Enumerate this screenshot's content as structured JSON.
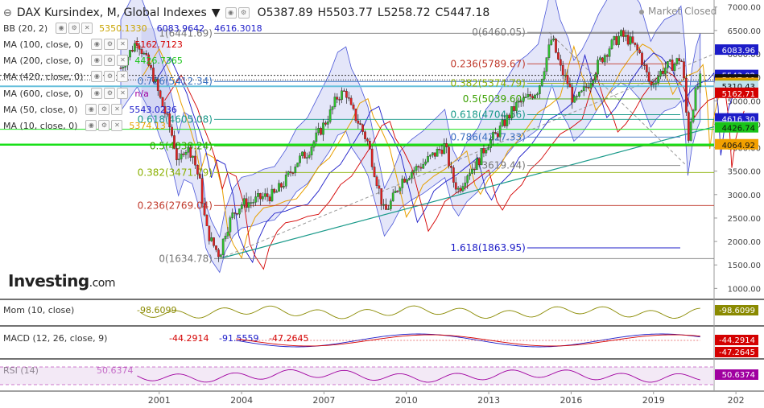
{
  "header": {
    "title": "DAX Kursindex, M, Global Indexes",
    "ohlc": [
      {
        "k": "O",
        "v": "5387.89"
      },
      {
        "k": "H",
        "v": "5503.77"
      },
      {
        "k": "L",
        "v": "5258.72"
      },
      {
        "k": "C",
        "v": "5447.18"
      }
    ],
    "market_status": "Market Closed"
  },
  "indicators": [
    {
      "label": "BB (20, 2)",
      "values": [
        {
          "t": "5350.1330",
          "c": "#c9a400"
        },
        {
          "t": "6083.9642",
          "c": "#1c1cc8"
        },
        {
          "t": "4616.3018",
          "c": "#1c1cc8"
        }
      ]
    },
    {
      "label": "MA (100, close, 0)",
      "values": [
        {
          "t": "5162.7123",
          "c": "#d40000"
        }
      ]
    },
    {
      "label": "MA (200, close, 0)",
      "values": [
        {
          "t": "4426.7365",
          "c": "#19c419"
        }
      ]
    },
    {
      "label": "MA (420, close, 0)",
      "values": [
        {
          "t": "",
          "c": "#222"
        }
      ]
    },
    {
      "label": "MA (600, close, 0)",
      "values": [
        {
          "t": "n/a",
          "c": "#a000a0"
        }
      ]
    },
    {
      "label": "MA (50, close, 0)",
      "values": [
        {
          "t": "5543.0236",
          "c": "#1c1cc8"
        }
      ]
    },
    {
      "label": "MA (10, close, 0)",
      "values": [
        {
          "t": "5374.13",
          "c": "#e8a000"
        }
      ]
    }
  ],
  "logo": {
    "brand": "Investing",
    "suffix": ".com"
  },
  "chart_data": {
    "type": "candlestick",
    "x_ticks": [
      "2001",
      "2004",
      "2007",
      "2010",
      "2013",
      "2016",
      "2019",
      "202"
    ],
    "y_ticks": [
      1000,
      1500,
      2000,
      2500,
      3000,
      3500,
      4000,
      4500,
      5000,
      5500,
      6000,
      6500,
      7000
    ],
    "y_tick_labels": [
      "1000.00",
      "1500.00",
      "2000.00",
      "2500.00",
      "3000.00",
      "3500.00",
      "4000.00",
      "4500.00",
      "5000.00",
      "5500.00",
      "6000.00",
      "6500.00",
      "7000.00"
    ],
    "ylim": [
      800,
      7150
    ],
    "path_points": [
      [
        1999.6,
        5700
      ],
      [
        2000.0,
        6100
      ],
      [
        2000.2,
        6300
      ],
      [
        2000.5,
        5900
      ],
      [
        2000.8,
        5500
      ],
      [
        2001.0,
        5100
      ],
      [
        2001.3,
        4600
      ],
      [
        2001.5,
        4200
      ],
      [
        2001.7,
        3600
      ],
      [
        2001.9,
        4000
      ],
      [
        2002.2,
        3900
      ],
      [
        2002.5,
        3200
      ],
      [
        2002.7,
        2300
      ],
      [
        2002.9,
        2000
      ],
      [
        2003.2,
        1700
      ],
      [
        2003.4,
        2200
      ],
      [
        2003.7,
        2600
      ],
      [
        2004.0,
        2800
      ],
      [
        2004.4,
        2850
      ],
      [
        2004.8,
        2950
      ],
      [
        2005.2,
        3000
      ],
      [
        2005.6,
        3300
      ],
      [
        2006.0,
        3700
      ],
      [
        2006.4,
        3900
      ],
      [
        2006.8,
        4300
      ],
      [
        2007.2,
        4700
      ],
      [
        2007.5,
        5100
      ],
      [
        2007.8,
        5200
      ],
      [
        2008.0,
        4800
      ],
      [
        2008.3,
        4500
      ],
      [
        2008.6,
        4100
      ],
      [
        2008.8,
        3600
      ],
      [
        2009.0,
        3100
      ],
      [
        2009.2,
        2600
      ],
      [
        2009.5,
        2900
      ],
      [
        2009.8,
        3300
      ],
      [
        2010.2,
        3500
      ],
      [
        2010.6,
        3650
      ],
      [
        2011.0,
        3850
      ],
      [
        2011.4,
        4050
      ],
      [
        2011.7,
        3300
      ],
      [
        2011.9,
        3100
      ],
      [
        2012.2,
        3450
      ],
      [
        2012.6,
        3700
      ],
      [
        2012.9,
        4050
      ],
      [
        2013.3,
        4300
      ],
      [
        2013.7,
        4650
      ],
      [
        2014.0,
        4900
      ],
      [
        2014.4,
        5050
      ],
      [
        2014.8,
        5250
      ],
      [
        2015.1,
        5900
      ],
      [
        2015.3,
        6350
      ],
      [
        2015.6,
        5700
      ],
      [
        2015.9,
        5350
      ],
      [
        2016.1,
        4950
      ],
      [
        2016.4,
        5150
      ],
      [
        2016.7,
        5450
      ],
      [
        2017.0,
        5800
      ],
      [
        2017.4,
        6150
      ],
      [
        2017.8,
        6400
      ],
      [
        2018.1,
        6300
      ],
      [
        2018.5,
        6000
      ],
      [
        2018.9,
        5300
      ],
      [
        2019.1,
        5500
      ],
      [
        2019.4,
        5700
      ],
      [
        2019.8,
        5800
      ],
      [
        2020.0,
        5950
      ],
      [
        2020.15,
        5200
      ],
      [
        2020.25,
        4100
      ],
      [
        2020.4,
        4800
      ],
      [
        2020.55,
        5200
      ],
      [
        2020.7,
        5450
      ]
    ],
    "current_price": 5447.18,
    "fib_upper": [
      {
        "level": "1",
        "price": 6441.69,
        "text": "1(6441.69)"
      },
      {
        "level": "0.786",
        "price": 5412.34,
        "text": "0.786(5412.34)"
      },
      {
        "level": "0.618",
        "price": 4605.08,
        "text": "0.618(4605.08)"
      },
      {
        "level": "0.5",
        "price": 4038.24,
        "text": "0.5(4038.24)"
      },
      {
        "level": "0.382",
        "price": 3471.79,
        "text": "0.382(3471.79)"
      },
      {
        "level": "0.236",
        "price": 2769.04,
        "text": "0.236(2769.04)"
      },
      {
        "level": "0",
        "price": 1634.78,
        "text": "0(1634.78)"
      }
    ],
    "fib_lower": [
      {
        "level": "0",
        "price": 6460.05,
        "text": "0(6460.05)"
      },
      {
        "level": "0.236",
        "price": 5789.67,
        "text": "0.236(5789.67)"
      },
      {
        "level": "0.382",
        "price": 5374.79,
        "text": "0.382(5374.79)"
      },
      {
        "level": "0.5",
        "price": 5039.6,
        "text": "0.5(5039.60)"
      },
      {
        "level": "0.618",
        "price": 4704.56,
        "text": "0.618(4704.56)"
      },
      {
        "level": "0.786",
        "price": 4227.33,
        "text": "0.786(4227.33)"
      },
      {
        "level": "1",
        "price": 3619.44,
        "text": "1(3619.44)"
      },
      {
        "level": "1.618",
        "price": 1863.95,
        "text": "1.618(1863.95)"
      }
    ],
    "price_labels": [
      {
        "text": "6083.96",
        "price": 6083.96,
        "bg": "#1c1cc8",
        "fg": "#ffffff"
      },
      {
        "text": "5543.02",
        "price": 5543.02,
        "bg": "#1c1cc8",
        "fg": "#ffffff"
      },
      {
        "text": "5447.18",
        "price": 5447.18,
        "bg": "#111111",
        "fg": "#ffffff"
      },
      {
        "text": "5374.13",
        "price": 5374.13,
        "bg": "#f2a000",
        "fg": "#111111"
      },
      {
        "text": "5350.13",
        "price": 5350.13,
        "bg": "#c9a400",
        "fg": "#111111"
      },
      {
        "text": "5310.43",
        "price": 5310.43,
        "bg": "#bfe3ee",
        "fg": "#111111"
      },
      {
        "text": "5162.71",
        "price": 5162.71,
        "bg": "#d40000",
        "fg": "#ffffff"
      },
      {
        "text": "4616.30",
        "price": 4616.3,
        "bg": "#1c1cc8",
        "fg": "#ffffff"
      },
      {
        "text": "4445.23",
        "price": 4445.23,
        "bg": "#bfe3ee",
        "fg": "#111111"
      },
      {
        "text": "4426.74",
        "price": 4426.74,
        "bg": "#19c419",
        "fg": "#111111"
      },
      {
        "text": "4064.92",
        "price": 4064.92,
        "bg": "#f2a000",
        "fg": "#111111"
      }
    ],
    "panels": {
      "mom": {
        "label": "Mom (10, close)",
        "value": "-98.6099",
        "value_color": "#8a8a00",
        "box_bg": "#8a8a00"
      },
      "macd": {
        "label": "MACD (12, 26, close, 9)",
        "values": [
          {
            "t": "-44.2914",
            "c": "#d40000"
          },
          {
            "t": "-91.5559",
            "c": "#1c1cc8"
          },
          {
            "t": "-47.2645",
            "c": "#d40000"
          }
        ],
        "box1": "-44.2914",
        "box2": "-47.2645"
      },
      "rsi": {
        "label": "RSI (14)",
        "value": "50.6374",
        "value_color": "#a000a0",
        "box_bg": "#a000a0"
      }
    }
  }
}
